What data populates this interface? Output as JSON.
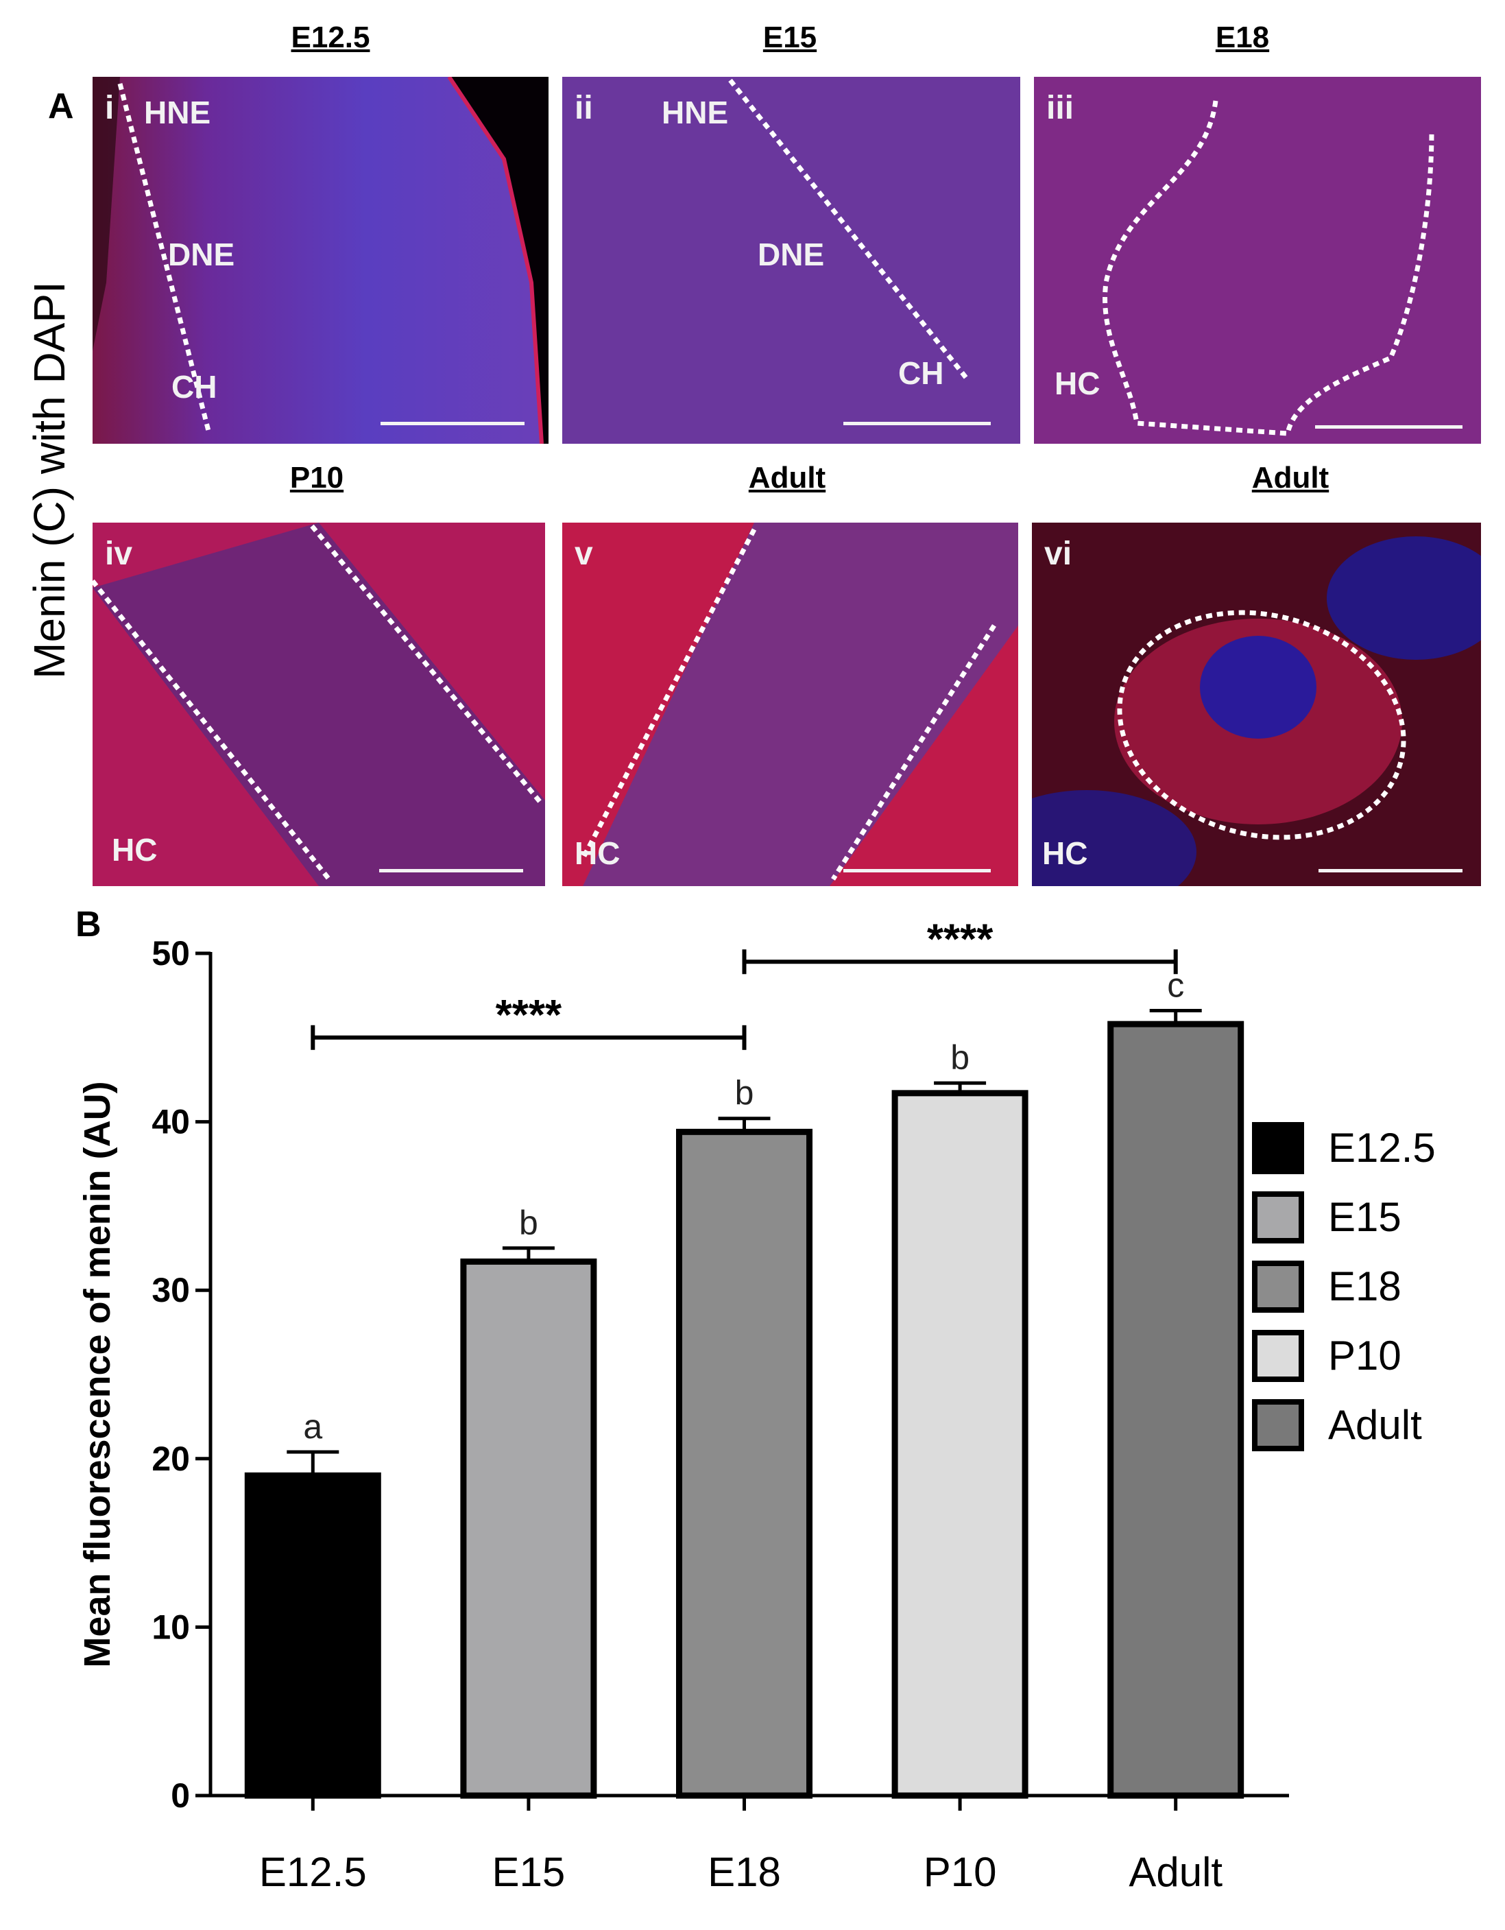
{
  "panel_a": {
    "letter": "A",
    "side_label": "Menin (C) with DAPI",
    "panels": [
      {
        "roman": "i",
        "stage": "E12.5",
        "regions": [
          "HNE",
          "DNE",
          "CH"
        ]
      },
      {
        "roman": "ii",
        "stage": "E15",
        "regions": [
          "HNE",
          "DNE",
          "CH"
        ]
      },
      {
        "roman": "iii",
        "stage": "E18",
        "regions": [
          "HC"
        ]
      },
      {
        "roman": "iv",
        "stage": "P10",
        "regions": [
          "HC"
        ]
      },
      {
        "roman": "v",
        "stage": "Adult",
        "regions": [
          "HC"
        ]
      },
      {
        "roman": "vi",
        "stage": "Adult",
        "regions": [
          "HC"
        ]
      }
    ]
  },
  "panel_b": {
    "letter": "B"
  },
  "chart_data": {
    "type": "bar",
    "title": "",
    "ylabel": "Mean fluorescence of menin (AU)",
    "xlabel": "",
    "ylim": [
      0,
      50
    ],
    "yticks": [
      "0",
      "10",
      "20",
      "30",
      "40",
      "50"
    ],
    "categories": [
      "E12.5",
      "E15",
      "E18",
      "P10",
      "Adult"
    ],
    "values": [
      19,
      31.7,
      39.4,
      41.7,
      45.8
    ],
    "errors": [
      1.4,
      0.8,
      0.8,
      0.6,
      0.8
    ],
    "letters": [
      "a",
      "b",
      "b",
      "b",
      "c"
    ],
    "colors": [
      "#000000",
      "#a8a8aa",
      "#8c8c8c",
      "#dcdcdc",
      "#797979"
    ],
    "significance": [
      {
        "from": "E12.5",
        "to": "E18",
        "label": "****",
        "y": 45
      },
      {
        "from": "E18",
        "to": "Adult",
        "label": "****",
        "y": 49.5
      }
    ],
    "legend": [
      "E12.5",
      "E15",
      "E18",
      "P10",
      "Adult"
    ],
    "legend_position": "right"
  }
}
